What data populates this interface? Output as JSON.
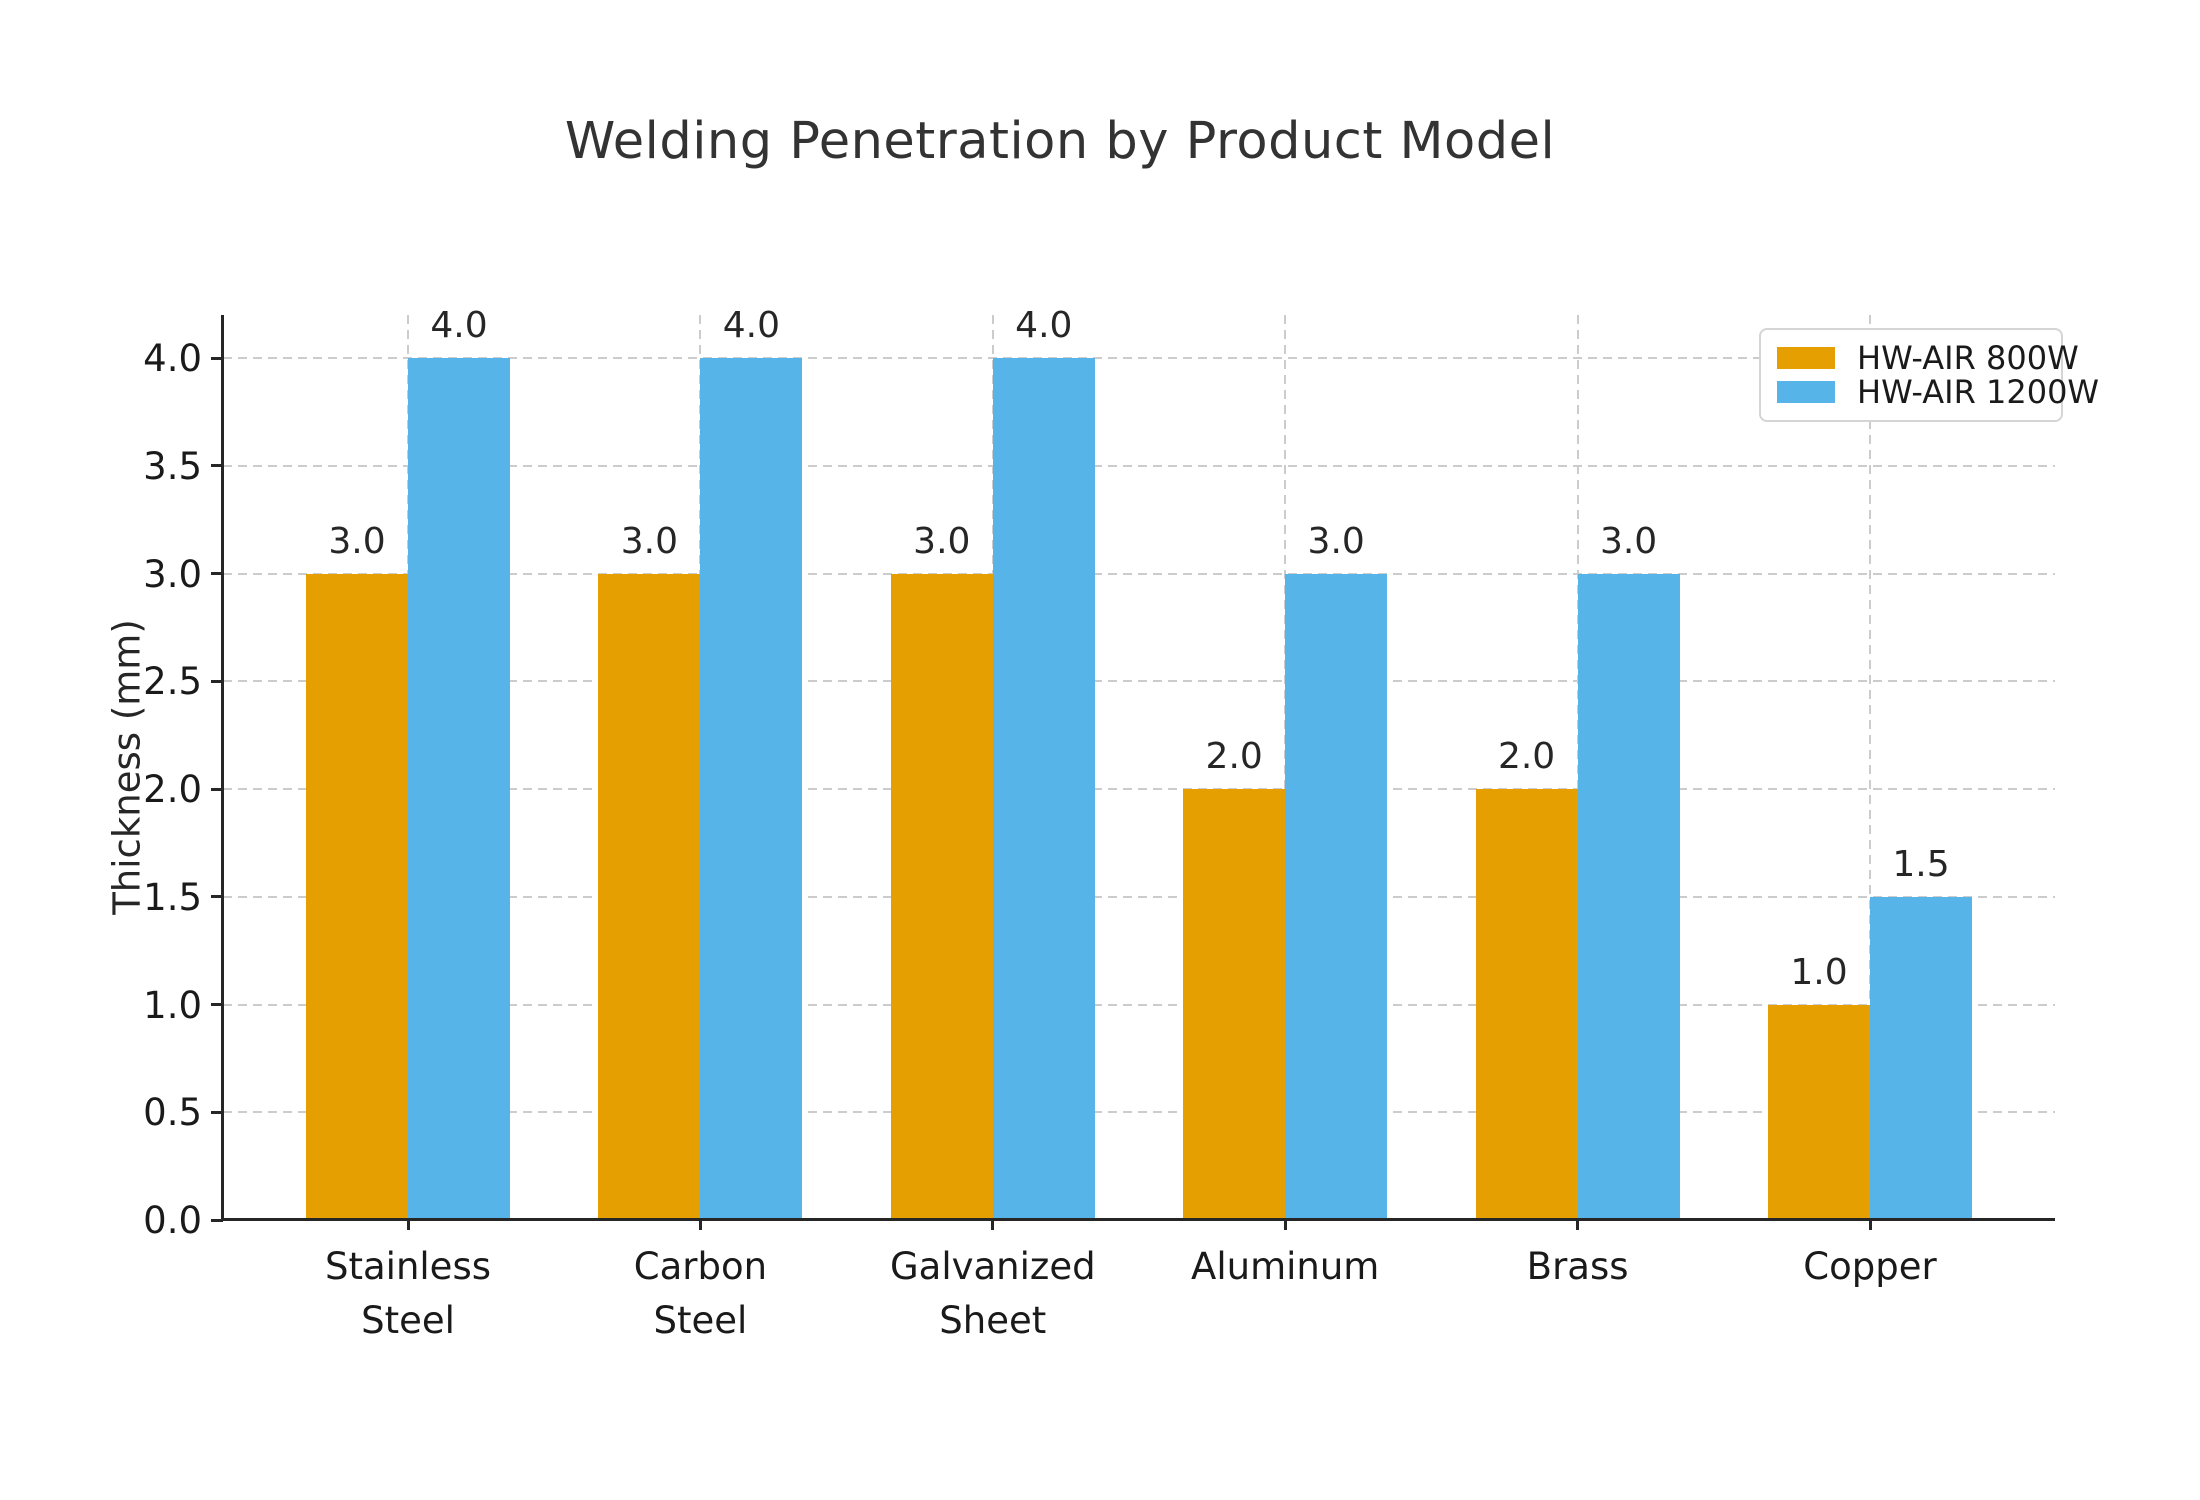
{
  "page": {
    "background": "#ffffff"
  },
  "chart_data": {
    "type": "bar",
    "title": "Welding Penetration by Product Model",
    "xlabel": "",
    "ylabel": "Thickness (mm)",
    "categories": [
      "Stainless\nSteel",
      "Carbon\nSteel",
      "Galvanized\nSheet",
      "Aluminum",
      "Brass",
      "Copper"
    ],
    "series": [
      {
        "name": "HW-AIR 800W",
        "color": "#E69F00",
        "values": [
          3.0,
          3.0,
          3.0,
          2.0,
          2.0,
          1.0
        ]
      },
      {
        "name": "HW-AIR 1200W",
        "color": "#56B4E9",
        "values": [
          4.0,
          4.0,
          4.0,
          3.0,
          3.0,
          1.5
        ]
      }
    ],
    "ylim": [
      0.0,
      4.2
    ],
    "yticks": [
      0.0,
      0.5,
      1.0,
      1.5,
      2.0,
      2.5,
      3.0,
      3.5,
      4.0
    ],
    "grid": true,
    "grid_style": "dashed",
    "grid_color": "#cccccc",
    "axis_color": "#262626",
    "text_color": "#1a1a1a",
    "title_color": "#333333",
    "legend_position": "upper right",
    "bar_value_label_decimals": 1
  }
}
